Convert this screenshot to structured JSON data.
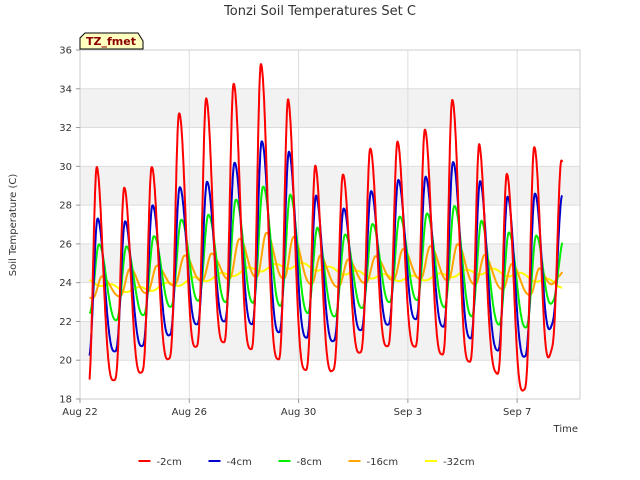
{
  "chart_data": {
    "type": "line",
    "title": "Tonzi Soil Temperatures Set C",
    "xlabel": "Time",
    "ylabel": "Soil Temperature (C)",
    "badge": "TZ_fmet",
    "ylim": [
      18,
      36
    ],
    "yticks": [
      "18",
      "20",
      "22",
      "24",
      "26",
      "28",
      "30",
      "32",
      "34",
      "36"
    ],
    "xlim_days": [
      0,
      18.3
    ],
    "xticks": [
      {
        "label": "Aug 22",
        "day": 0
      },
      {
        "label": "Aug 26",
        "day": 4
      },
      {
        "label": "Aug 30",
        "day": 8
      },
      {
        "label": "Sep 3",
        "day": 12
      },
      {
        "label": "Sep 7",
        "day": 16
      }
    ],
    "grid": true,
    "legend_position": "bottom",
    "days": [
      0.5,
      1,
      2,
      3,
      4,
      5,
      6,
      7,
      8,
      9,
      10,
      11,
      12,
      13,
      14,
      15,
      16,
      17,
      17.5
    ],
    "series": [
      {
        "name": "-2cm",
        "color": "#ff0000",
        "min": [
          18.3,
          18.9,
          19.2,
          19.9,
          20.6,
          21.0,
          20.7,
          20.2,
          19.6,
          19.2,
          20.3,
          20.7,
          20.8,
          20.4,
          20.0,
          19.7,
          18.2,
          19.3,
          21.7
        ],
        "max": [
          30.3,
          28.9,
          28.9,
          30.6,
          34.0,
          33.2,
          34.9,
          35.5,
          32.2,
          28.7,
          30.1,
          31.4,
          31.2,
          32.3,
          34.1,
          29.3,
          29.8,
          31.7,
          30.3
        ]
      },
      {
        "name": "-4cm",
        "color": "#0000cc",
        "min": [
          20.0,
          20.4,
          20.6,
          21.1,
          21.8,
          22.0,
          22.0,
          21.5,
          21.3,
          20.8,
          21.5,
          21.7,
          22.2,
          21.9,
          21.3,
          20.7,
          20.0,
          20.7,
          22.8
        ],
        "max": [
          27.4,
          27.1,
          27.2,
          28.4,
          29.2,
          29.2,
          30.7,
          31.6,
          30.3,
          27.5,
          28.0,
          29.1,
          29.4,
          29.5,
          30.6,
          28.5,
          28.4,
          28.7,
          28.5
        ]
      },
      {
        "name": "-8cm",
        "color": "#00ee00",
        "min": [
          22.4,
          22.0,
          22.2,
          22.6,
          23.1,
          23.0,
          23.0,
          22.9,
          22.6,
          22.1,
          22.6,
          22.9,
          23.2,
          22.9,
          22.4,
          22.0,
          21.5,
          22.1,
          23.6
        ],
        "max": [
          26.1,
          25.8,
          25.9,
          26.6,
          27.5,
          27.5,
          28.6,
          29.1,
          28.3,
          26.2,
          26.6,
          27.2,
          27.5,
          27.6,
          28.1,
          26.8,
          26.5,
          26.4,
          26.2
        ]
      },
      {
        "name": "-16cm",
        "color": "#ffa500",
        "min": [
          23.2,
          23.3,
          23.3,
          23.7,
          24.1,
          24.1,
          24.3,
          24.3,
          24.1,
          23.7,
          23.9,
          24.1,
          24.2,
          24.2,
          24.0,
          23.8,
          23.5,
          23.2,
          24.3
        ],
        "max": [
          24.4,
          24.3,
          24.8,
          24.9,
          25.5,
          25.5,
          26.4,
          26.6,
          26.3,
          25.2,
          25.2,
          25.4,
          25.8,
          25.9,
          26.0,
          25.3,
          24.9,
          24.7,
          24.8
        ]
      },
      {
        "name": "-32cm",
        "color": "#ffff00",
        "levels": [
          24.1,
          23.8,
          23.6,
          23.8,
          24.1,
          24.3,
          24.6,
          24.8,
          24.9,
          24.7,
          24.5,
          24.3,
          24.2,
          24.3,
          24.5,
          24.6,
          24.4,
          24.1,
          23.9
        ],
        "amp": 0.15
      }
    ]
  }
}
